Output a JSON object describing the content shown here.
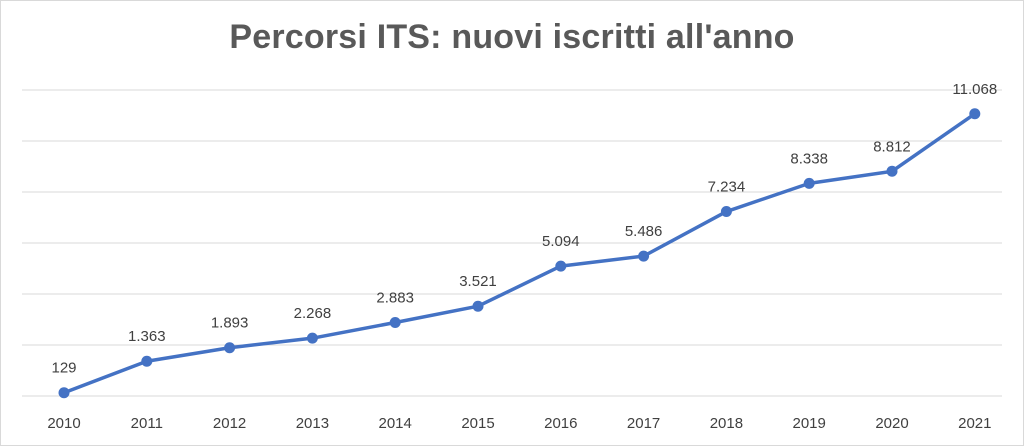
{
  "chart_data": {
    "type": "line",
    "title": "Percorsi ITS: nuovi iscritti all'anno",
    "xlabel": "",
    "ylabel": "",
    "categories": [
      "2010",
      "2011",
      "2012",
      "2013",
      "2014",
      "2015",
      "2016",
      "2017",
      "2018",
      "2019",
      "2020",
      "2021"
    ],
    "series": [
      {
        "values": [
          129,
          1363,
          1893,
          2268,
          2883,
          3521,
          5094,
          5486,
          7234,
          8338,
          8812,
          11068
        ],
        "data_labels": [
          "129",
          "1.363",
          "1.893",
          "2.268",
          "2.883",
          "3.521",
          "5.094",
          "5.486",
          "7.234",
          "8.338",
          "8.812",
          "11.068"
        ],
        "color": "#4472c4"
      }
    ],
    "ylim": [
      0,
      12000
    ],
    "gridlines": true,
    "y_axis_labels_visible": false,
    "legend": "none",
    "gridline_color": "#d9d9d9"
  }
}
